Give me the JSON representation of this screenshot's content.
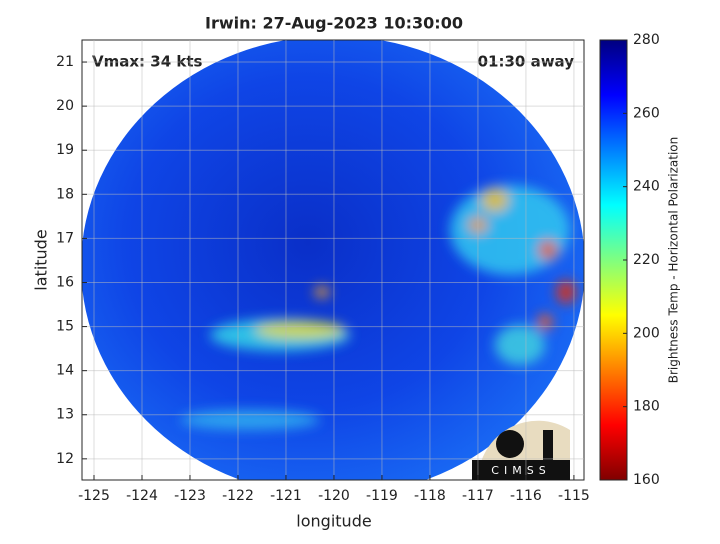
{
  "chart_data": {
    "type": "heatmap",
    "title": "Irwin: 27-Aug-2023 10:30:00",
    "annotations": [
      "Vmax: 34 kts",
      "01:30 away"
    ],
    "xlabel": "longitude",
    "ylabel": "latitude",
    "xlim": [
      -125.25,
      -114.79
    ],
    "ylim": [
      11.52,
      21.5
    ],
    "xticks": [
      -125,
      -124,
      -123,
      -122,
      -121,
      -120,
      -119,
      -118,
      -117,
      -116,
      -115
    ],
    "yticks": [
      12,
      13,
      14,
      15,
      16,
      17,
      18,
      19,
      20,
      21
    ],
    "grid": true,
    "colormap": "jet",
    "colorbar": {
      "label": "Brightness Temp - Horizontal Polarization",
      "lim": [
        160,
        280
      ],
      "ticks": [
        160,
        180,
        200,
        220,
        240,
        260,
        280
      ]
    },
    "logo": "CIMSS"
  }
}
